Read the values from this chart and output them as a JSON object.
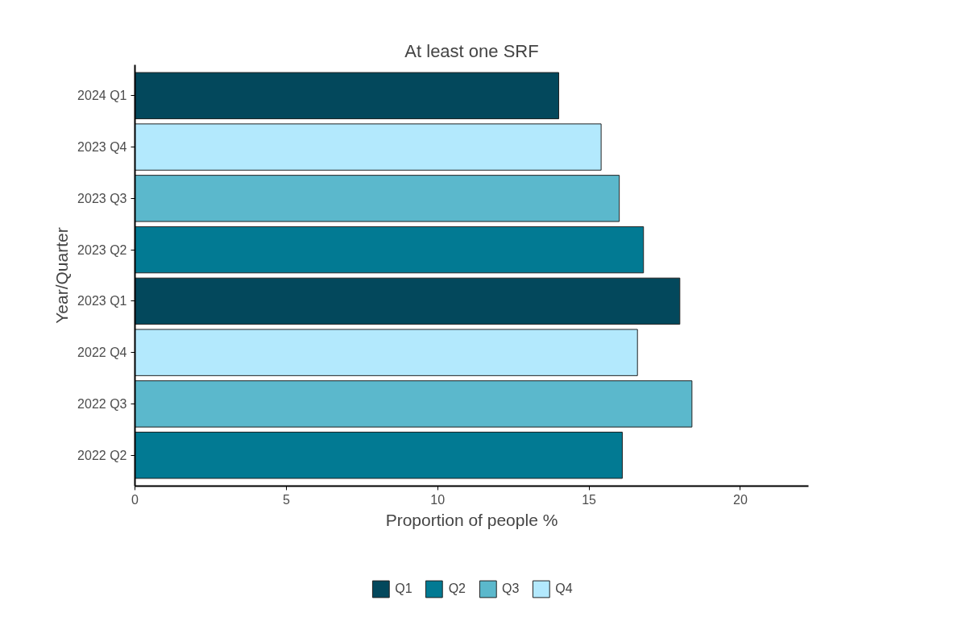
{
  "chart_data": {
    "type": "bar",
    "orientation": "horizontal",
    "title": "At least one SRF",
    "xlabel": "Proportion of people %",
    "ylabel": "Year/Quarter",
    "categories": [
      "2024 Q1",
      "2023 Q4",
      "2023 Q3",
      "2023 Q2",
      "2023 Q1",
      "2022 Q4",
      "2022 Q3",
      "2022 Q2"
    ],
    "series": [
      {
        "name": "Q1",
        "color": "#03485c",
        "values": [
          14.0,
          null,
          null,
          null,
          18.0,
          null,
          null,
          null
        ]
      },
      {
        "name": "Q2",
        "color": "#027a93",
        "values": [
          null,
          null,
          null,
          16.8,
          null,
          null,
          null,
          16.1
        ]
      },
      {
        "name": "Q3",
        "color": "#5bb8cc",
        "values": [
          null,
          null,
          16.0,
          null,
          null,
          null,
          18.4,
          null
        ]
      },
      {
        "name": "Q4",
        "color": "#b3e9fd",
        "values": [
          null,
          15.4,
          null,
          null,
          null,
          16.6,
          null,
          null
        ]
      }
    ],
    "xlim": [
      0,
      22.25
    ],
    "xticks": [
      0,
      5,
      10,
      15,
      20
    ],
    "grid": false,
    "legend": "bottom"
  }
}
